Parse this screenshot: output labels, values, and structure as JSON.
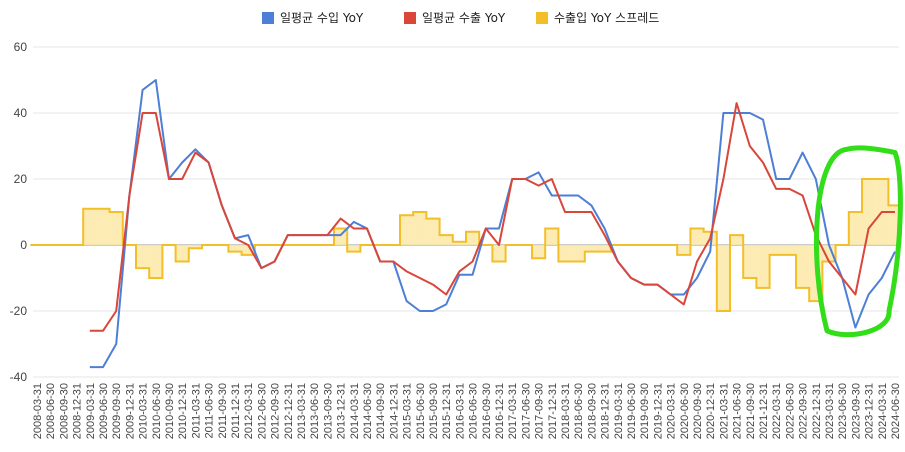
{
  "chart_data": {
    "type": "line",
    "title": "",
    "xlabel": "",
    "ylabel": "",
    "ylim": [
      -40,
      60
    ],
    "yticks": [
      "-40",
      "-20",
      "0",
      "20",
      "40",
      "60"
    ],
    "grid": true,
    "legend_position": "top-center",
    "colors": {
      "import": "#4e7fd6",
      "export": "#d9463a",
      "spread": "#f2bf29",
      "spread_fill": "#fbe7a6",
      "highlight": "#33dd1a"
    },
    "categories": [
      "2008-03-31",
      "2008-06-30",
      "2008-09-30",
      "2008-12-31",
      "2009-03-31",
      "2009-06-30",
      "2009-09-30",
      "2009-12-31",
      "2010-03-31",
      "2010-06-30",
      "2010-09-30",
      "2010-12-31",
      "2011-03-31",
      "2011-06-30",
      "2011-09-30",
      "2011-12-31",
      "2012-03-31",
      "2012-06-30",
      "2012-09-30",
      "2012-12-31",
      "2013-03-31",
      "2013-06-30",
      "2013-09-30",
      "2013-12-31",
      "2014-03-31",
      "2014-06-30",
      "2014-09-30",
      "2014-12-31",
      "2015-03-31",
      "2015-06-30",
      "2015-09-30",
      "2015-12-31",
      "2016-03-31",
      "2016-06-30",
      "2016-09-30",
      "2016-12-31",
      "2017-03-31",
      "2017-06-30",
      "2017-09-30",
      "2017-12-31",
      "2018-03-31",
      "2018-06-30",
      "2018-09-30",
      "2018-12-31",
      "2019-03-31",
      "2019-06-30",
      "2019-09-30",
      "2019-12-31",
      "2020-03-31",
      "2020-06-30",
      "2020-09-30",
      "2020-12-31",
      "2021-03-31",
      "2021-06-30",
      "2021-09-30",
      "2021-12-31",
      "2022-03-31",
      "2022-06-30",
      "2022-09-30",
      "2022-12-31",
      "2023-03-31",
      "2023-06-30",
      "2023-09-30",
      "2023-12-31",
      "2024-03-31",
      "2024-06-30"
    ],
    "series": [
      {
        "name": "일평균 수입 YoY",
        "key": "import",
        "values": [
          null,
          null,
          null,
          null,
          -37,
          -37,
          -30,
          15,
          47,
          50,
          20,
          25,
          29,
          25,
          12,
          2,
          3,
          -7,
          -5,
          3,
          3,
          3,
          3,
          3,
          7,
          5,
          -5,
          -5,
          -17,
          -20,
          -20,
          -18,
          -9,
          -9,
          5,
          5,
          20,
          20,
          22,
          15,
          15,
          15,
          12,
          5,
          -5,
          -10,
          -12,
          -12,
          -15,
          -15,
          -10,
          -2,
          40,
          40,
          40,
          38,
          20,
          20,
          28,
          20,
          0,
          -10,
          -25,
          -15,
          -10,
          -2
        ]
      },
      {
        "name": "일평균 수출 YoY",
        "key": "export",
        "values": [
          null,
          null,
          null,
          null,
          -26,
          -26,
          -20,
          15,
          40,
          40,
          20,
          20,
          28,
          25,
          12,
          2,
          0,
          -7,
          -5,
          3,
          3,
          3,
          3,
          8,
          5,
          5,
          -5,
          -5,
          -8,
          -10,
          -12,
          -15,
          -8,
          -5,
          5,
          0,
          20,
          20,
          18,
          20,
          10,
          10,
          10,
          3,
          -5,
          -10,
          -12,
          -12,
          -15,
          -18,
          -5,
          2,
          20,
          43,
          30,
          25,
          17,
          17,
          15,
          3,
          -5,
          -10,
          -15,
          5,
          10,
          10
        ]
      },
      {
        "name": "수출입 YoY 스프레드",
        "key": "spread",
        "values": [
          0,
          0,
          0,
          0,
          11,
          11,
          10,
          0,
          -7,
          -10,
          0,
          -5,
          -1,
          0,
          0,
          -2,
          -3,
          0,
          0,
          0,
          0,
          0,
          0,
          5,
          -2,
          0,
          0,
          0,
          9,
          10,
          8,
          3,
          1,
          4,
          0,
          -5,
          0,
          0,
          -4,
          5,
          -5,
          -5,
          -2,
          -2,
          0,
          0,
          0,
          0,
          0,
          -3,
          5,
          4,
          -20,
          3,
          -10,
          -13,
          -3,
          -3,
          -13,
          -17,
          -5,
          0,
          10,
          20,
          20,
          12
        ]
      }
    ],
    "annotations": [
      {
        "type": "ellipse-highlight",
        "target": "2023-06-30 to 2024-06-30"
      }
    ]
  }
}
